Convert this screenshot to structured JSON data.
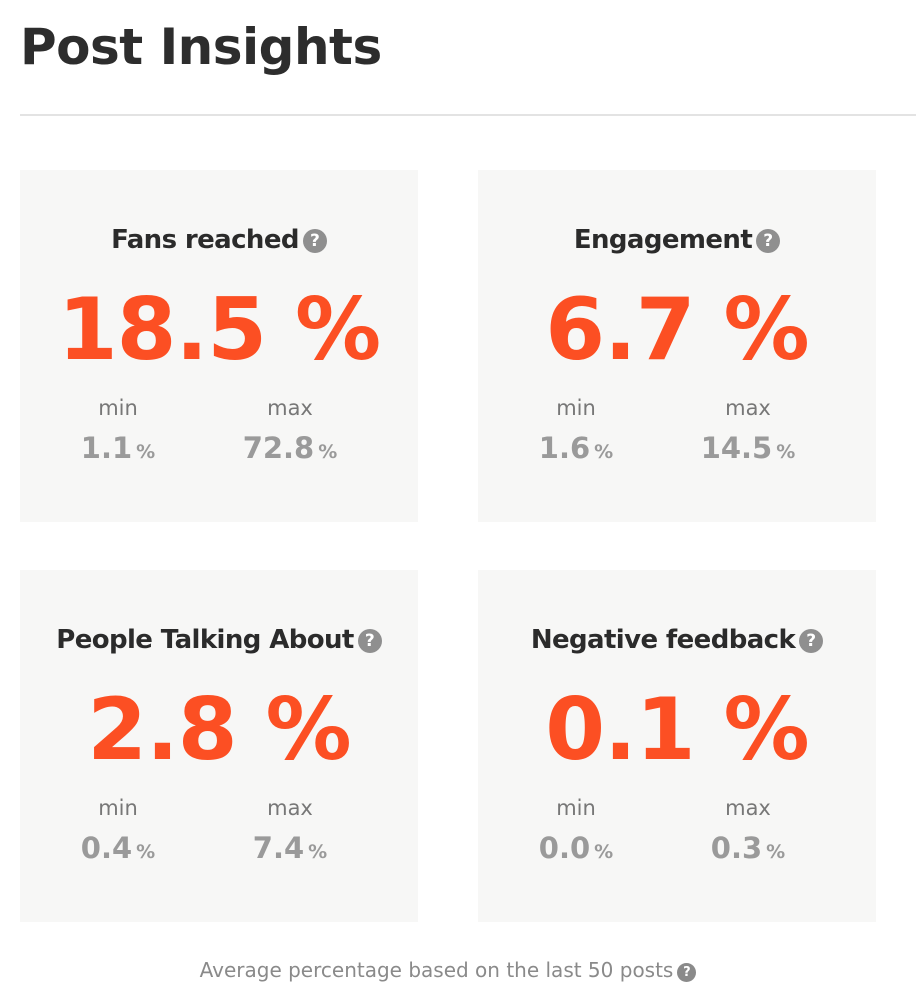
{
  "header": {
    "title": "Post Insights"
  },
  "cards": [
    {
      "title": "Fans reached",
      "value": "18.5 %",
      "min_label": "min",
      "min_value": "1.1",
      "max_label": "max",
      "max_value": "72.8",
      "unit": "%",
      "help_icon": "question-circle-icon"
    },
    {
      "title": "Engagement",
      "value": "6.7 %",
      "min_label": "min",
      "min_value": "1.6",
      "max_label": "max",
      "max_value": "14.5",
      "unit": "%",
      "help_icon": "question-circle-icon"
    },
    {
      "title": "People Talking About",
      "value": "2.8 %",
      "min_label": "min",
      "min_value": "0.4",
      "max_label": "max",
      "max_value": "7.4",
      "unit": "%",
      "help_icon": "question-circle-icon"
    },
    {
      "title": "Negative feedback",
      "value": "0.1 %",
      "min_label": "min",
      "min_value": "0.0",
      "max_label": "max",
      "max_value": "0.3",
      "unit": "%",
      "help_icon": "question-circle-icon"
    }
  ],
  "footnote": {
    "text": "Average percentage based on the last 50 posts",
    "help_icon": "question-circle-icon"
  },
  "icons": {
    "help_glyph": "?"
  },
  "colors": {
    "accent": "#fc4f23",
    "card_background": "#f7f7f6",
    "muted_text": "#9a9a9a",
    "title_text": "#2b2b2b",
    "help_icon": "#8f8f8f"
  }
}
